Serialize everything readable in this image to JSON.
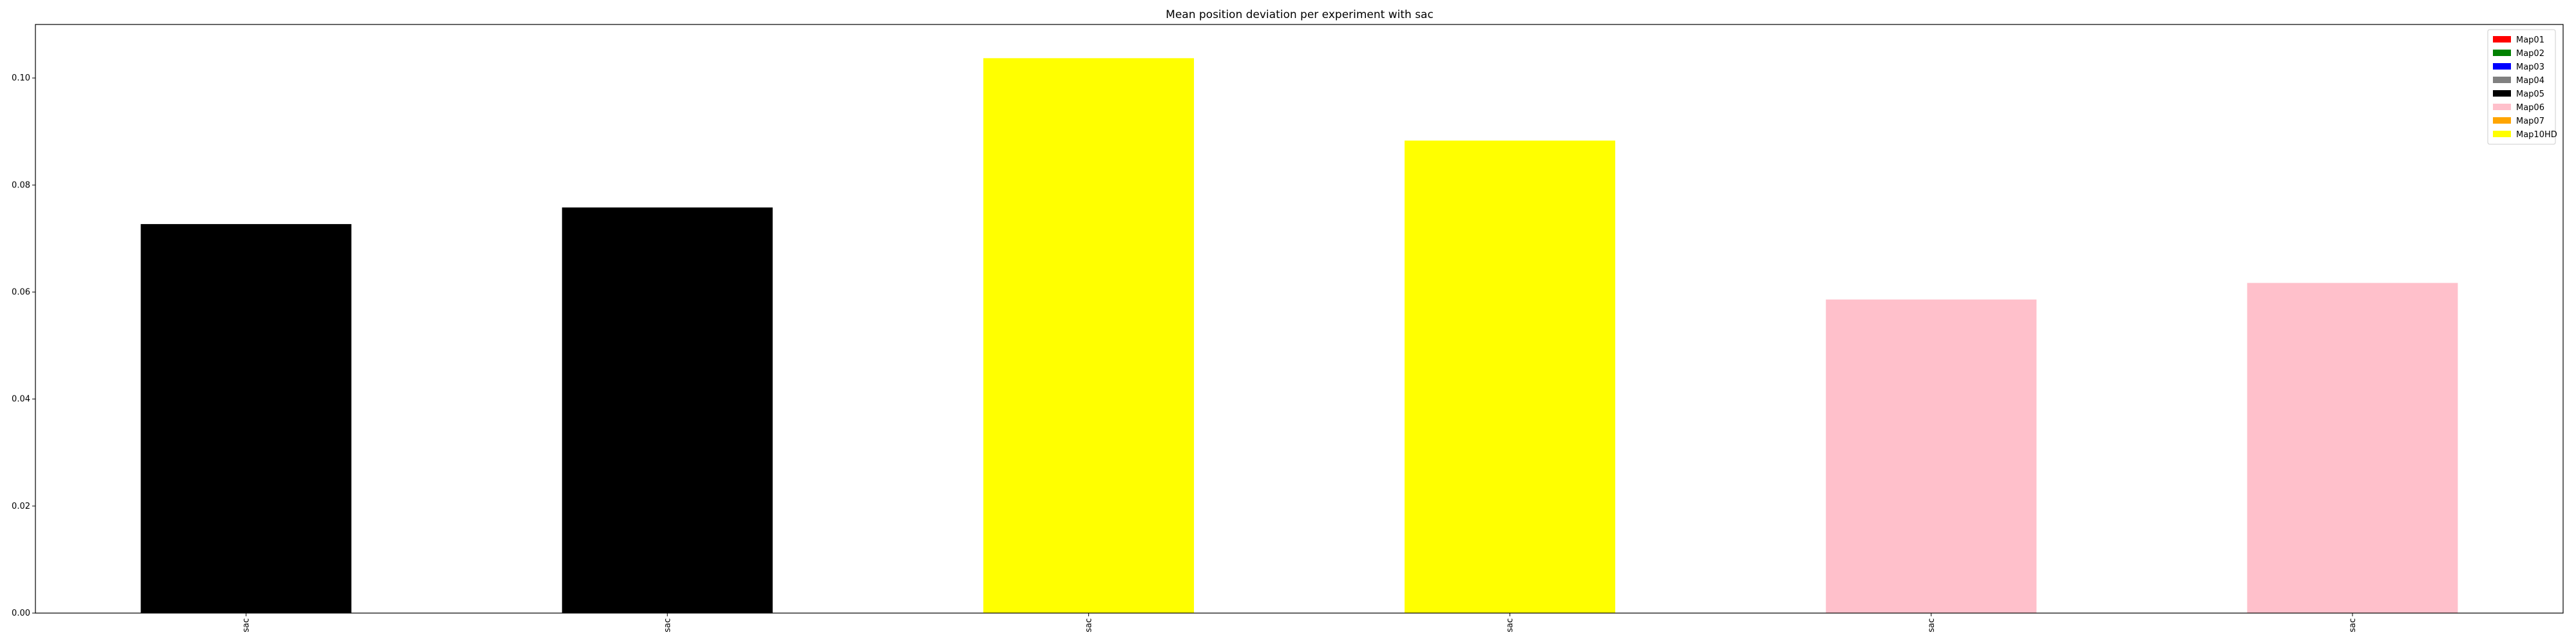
{
  "chart_data": {
    "type": "bar",
    "title": "Mean position deviation per experiment with sac",
    "xlabel": "",
    "ylabel": "",
    "categories": [
      "sac",
      "sac",
      "sac",
      "sac",
      "sac",
      "sac"
    ],
    "values": [
      0.0727,
      0.0758,
      0.1037,
      0.0883,
      0.0586,
      0.0617
    ],
    "bar_colors": [
      "#000000",
      "#000000",
      "#ffff00",
      "#ffff00",
      "#ffc0cb",
      "#ffc0cb"
    ],
    "ylim": [
      0,
      0.11
    ],
    "yticks": [
      "0.00",
      "0.02",
      "0.04",
      "0.06",
      "0.08",
      "0.10"
    ],
    "grid": false,
    "legend_position": "top-right",
    "legend": [
      {
        "label": "Map01",
        "color": "#ff0000"
      },
      {
        "label": "Map02",
        "color": "#008000"
      },
      {
        "label": "Map03",
        "color": "#0000ff"
      },
      {
        "label": "Map04",
        "color": "#808080"
      },
      {
        "label": "Map05",
        "color": "#000000"
      },
      {
        "label": "Map06",
        "color": "#ffc0cb"
      },
      {
        "label": "Map07",
        "color": "#ffa500"
      },
      {
        "label": "Map10HD",
        "color": "#ffff00"
      }
    ]
  }
}
